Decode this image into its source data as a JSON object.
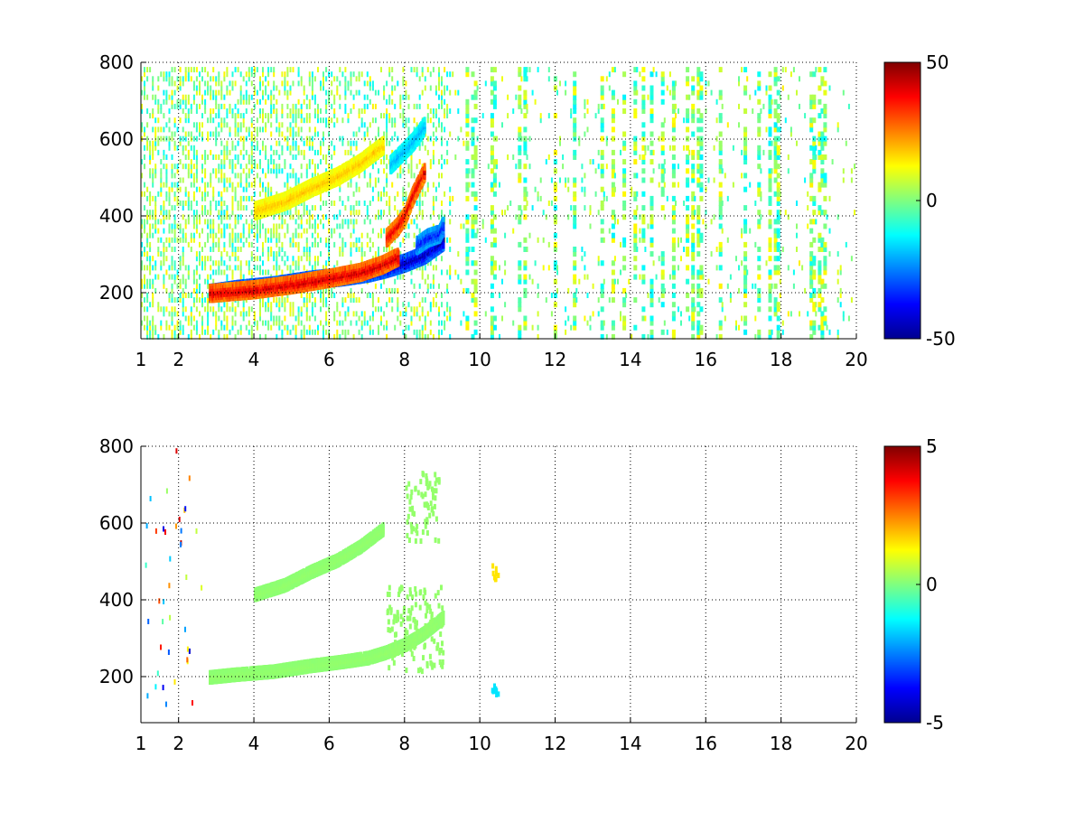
{
  "figure": {
    "background": "#ffffff"
  },
  "chart_data": [
    {
      "type": "heatmap",
      "title": "",
      "xlabel": "",
      "ylabel": "",
      "xlim": [
        1,
        20
      ],
      "ylim": [
        80,
        800
      ],
      "xticks": [
        1,
        2,
        4,
        6,
        8,
        10,
        12,
        14,
        16,
        18,
        20
      ],
      "yticks": [
        200,
        400,
        600,
        800
      ],
      "grid": true,
      "colorbar": {
        "min": -50,
        "max": 50,
        "ticks": [
          -50,
          0,
          50
        ],
        "colormap": "jet"
      },
      "features": [
        {
          "kind": "curve",
          "x": [
            2.8,
            3.5,
            4.5,
            5.5,
            6.3,
            7.0,
            7.5,
            8.0,
            8.5,
            9.0
          ],
          "y": [
            205,
            215,
            225,
            240,
            248,
            258,
            270,
            285,
            305,
            340
          ],
          "value": -45,
          "note": "lower branch"
        },
        {
          "kind": "curve",
          "x": [
            2.8,
            4.0,
            5.0,
            6.0,
            6.8,
            7.4,
            7.8
          ],
          "y": [
            205,
            215,
            228,
            245,
            260,
            280,
            300
          ],
          "value": 42
        },
        {
          "kind": "curve",
          "x": [
            4.0,
            4.8,
            5.5,
            6.2,
            6.8,
            7.4
          ],
          "y": [
            420,
            445,
            480,
            510,
            545,
            590
          ],
          "value": 18
        },
        {
          "kind": "curve",
          "x": [
            7.5,
            7.8,
            8.0,
            8.2,
            8.5
          ],
          "y": [
            350,
            380,
            410,
            460,
            520
          ],
          "value": 40
        },
        {
          "kind": "curve",
          "x": [
            8.3,
            8.6,
            8.9,
            9.0
          ],
          "y": [
            330,
            350,
            360,
            380
          ],
          "value": -35
        },
        {
          "kind": "curve",
          "x": [
            7.6,
            7.9,
            8.2,
            8.5
          ],
          "y": [
            540,
            570,
            600,
            640
          ],
          "value": -20
        }
      ]
    },
    {
      "type": "heatmap",
      "title": "",
      "xlabel": "",
      "ylabel": "",
      "xlim": [
        1,
        20
      ],
      "ylim": [
        80,
        800
      ],
      "xticks": [
        1,
        2,
        4,
        6,
        8,
        10,
        12,
        14,
        16,
        18,
        20
      ],
      "yticks": [
        200,
        400,
        600,
        800
      ],
      "grid": true,
      "colorbar": {
        "min": -5,
        "max": 5,
        "ticks": [
          -5,
          0,
          5
        ],
        "colormap": "jet"
      },
      "features": [
        {
          "kind": "curve",
          "x": [
            2.8,
            3.5,
            4.5,
            5.5,
            6.3,
            7.0,
            7.5,
            8.0,
            8.5,
            9.0
          ],
          "y": [
            205,
            212,
            220,
            235,
            245,
            255,
            270,
            290,
            320,
            360
          ],
          "value": 0.2
        },
        {
          "kind": "curve",
          "x": [
            4.0,
            4.8,
            5.5,
            6.2,
            6.8,
            7.4
          ],
          "y": [
            420,
            445,
            480,
            510,
            545,
            590
          ],
          "value": 0.2
        },
        {
          "kind": "cluster",
          "x": [
            7.5,
            9.0
          ],
          "y": [
            220,
            440
          ],
          "value": 0.2
        },
        {
          "kind": "cluster",
          "x": [
            8.0,
            8.9
          ],
          "y": [
            560,
            740
          ],
          "value": 0.2
        },
        {
          "kind": "cluster",
          "x": [
            10.3,
            10.5
          ],
          "y": [
            160,
            200
          ],
          "value": -1.5
        },
        {
          "kind": "cluster",
          "x": [
            10.3,
            10.5
          ],
          "y": [
            460,
            500
          ],
          "value": 1.5
        }
      ]
    }
  ]
}
